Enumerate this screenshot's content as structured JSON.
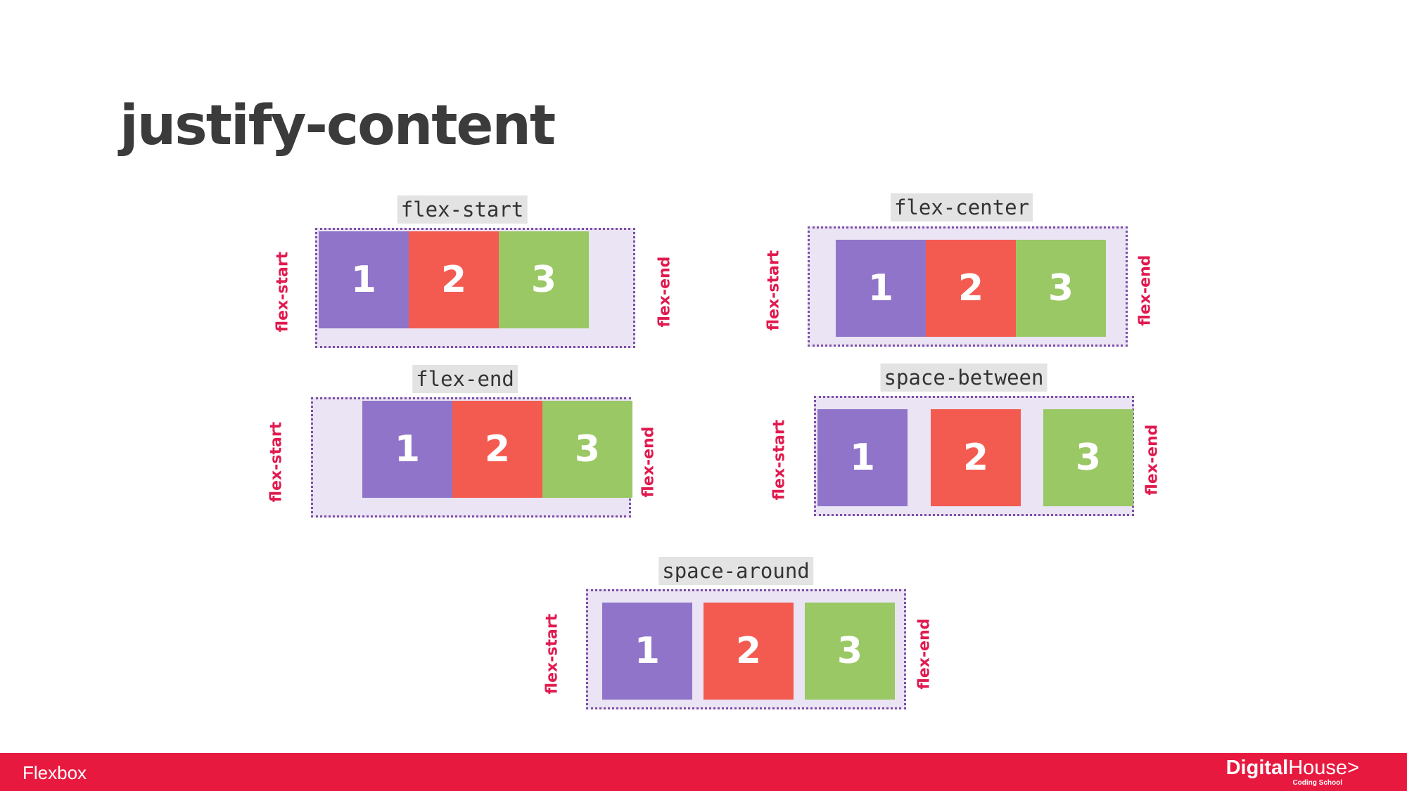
{
  "slide": {
    "title": "justify-content"
  },
  "diagrams": [
    {
      "id": "flex-start",
      "label": "flex-start",
      "start_label": "flex-start",
      "end_label": "flex-end",
      "items": [
        "1",
        "2",
        "3"
      ]
    },
    {
      "id": "flex-center",
      "label": "flex-center",
      "start_label": "flex-start",
      "end_label": "flex-end",
      "items": [
        "1",
        "2",
        "3"
      ]
    },
    {
      "id": "flex-end",
      "label": "flex-end",
      "start_label": "flex-start",
      "end_label": "flex-end",
      "items": [
        "1",
        "2",
        "3"
      ]
    },
    {
      "id": "space-between",
      "label": "space-between",
      "start_label": "flex-start",
      "end_label": "flex-end",
      "items": [
        "1",
        "2",
        "3"
      ]
    },
    {
      "id": "space-around",
      "label": "space-around",
      "start_label": "flex-start",
      "end_label": "flex-end",
      "items": [
        "1",
        "2",
        "3"
      ]
    }
  ],
  "colors": {
    "item_1": "#8f74c9",
    "item_2": "#f45b50",
    "item_3": "#99c865",
    "container_bg": "#eae4f4",
    "container_border": "#7b4fa6",
    "axis_label": "#e01a4f",
    "footer_bg": "#e8193f"
  },
  "footer": {
    "label": "Flexbox",
    "brand_bold": "Digital",
    "brand_light": "House",
    "brand_chevron": ">",
    "brand_sub": "Coding School"
  }
}
